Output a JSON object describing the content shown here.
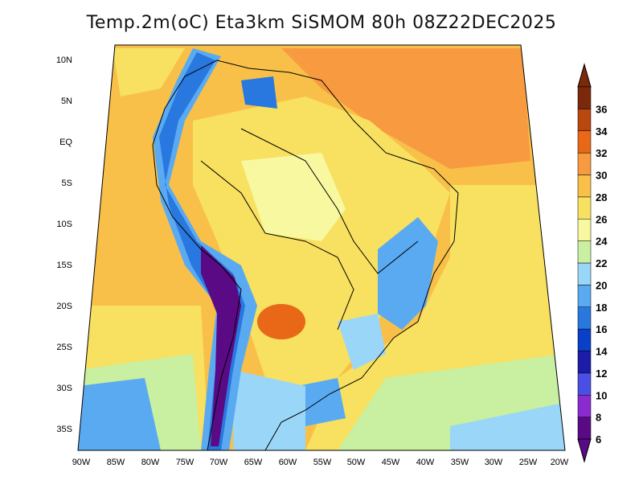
{
  "title": "Temp.2m(oC) Eta3km SiSMOM 80h 08Z22DEC2025",
  "lat_labels": [
    "10N",
    "5N",
    "EQ",
    "5S",
    "10S",
    "15S",
    "20S",
    "25S",
    "30S",
    "35S"
  ],
  "lon_labels": [
    "90W",
    "85W",
    "80W",
    "75W",
    "70W",
    "65W",
    "60W",
    "55W",
    "50W",
    "45W",
    "40W",
    "35W",
    "30W",
    "25W",
    "20W"
  ],
  "colorbar": {
    "labels": [
      "6",
      "8",
      "10",
      "12",
      "14",
      "16",
      "18",
      "20",
      "22",
      "24",
      "26",
      "28",
      "30",
      "32",
      "34",
      "36"
    ],
    "colors": [
      "#5a0a85",
      "#8a2bd0",
      "#4a4fe6",
      "#1c1ca6",
      "#0a3fc8",
      "#2878e0",
      "#5aaaf2",
      "#9ad6f8",
      "#c8f0a0",
      "#f8f8a0",
      "#f8e060",
      "#f8c048",
      "#f89a40",
      "#e86818",
      "#b84810",
      "#7a2a0a"
    ]
  },
  "palette": {
    "warm": "#f8b040",
    "mild": "#f8e060",
    "cool": "#c8f0a0",
    "cold": "#5aaaf2",
    "andes": "#5a0a85",
    "chaco": "#e86818"
  }
}
